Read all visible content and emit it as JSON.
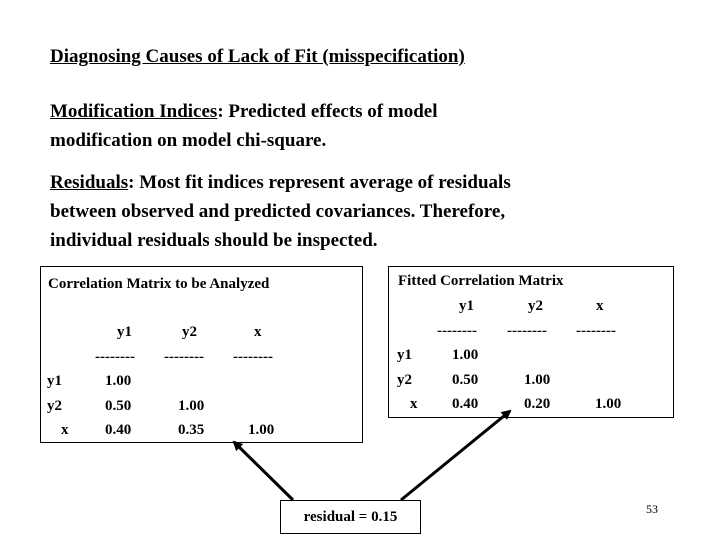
{
  "heading": "Diagnosing Causes of Lack of Fit (misspecification) ",
  "modification": {
    "term": "Modification Indices",
    "rest_line1": ": Predicted effects of model",
    "line2": "modification on model chi-square."
  },
  "residuals_para": {
    "term": "Residuals",
    "rest_line1": ": Most fit indices represent average of residuals",
    "line2": "between observed and predicted covariances. Therefore,",
    "line3": "individual residuals should be inspected."
  },
  "analyzed_matrix": {
    "title": "Correlation Matrix to be Analyzed",
    "col_headers": [
      "y1",
      "y2",
      "x"
    ],
    "dashes": [
      "--------",
      "--------",
      "--------"
    ],
    "rows": [
      {
        "label": "y1",
        "values": [
          "1.00"
        ]
      },
      {
        "label": "y2",
        "values": [
          "0.50",
          "1.00"
        ]
      },
      {
        "label": "x",
        "values": [
          "0.40",
          "0.35",
          "1.00"
        ]
      }
    ]
  },
  "fitted_matrix": {
    "title": "Fitted Correlation Matrix",
    "col_headers": [
      "y1",
      "y2",
      "x"
    ],
    "dashes": [
      "--------",
      "--------",
      "--------"
    ],
    "rows": [
      {
        "label": "y1",
        "values": [
          "1.00"
        ]
      },
      {
        "label": "y2",
        "values": [
          "0.50",
          "1.00"
        ]
      },
      {
        "label": "x",
        "values": [
          "0.40",
          "0.20",
          "1.00"
        ]
      }
    ]
  },
  "residual_label": "residual = 0.15",
  "page_number": "53"
}
